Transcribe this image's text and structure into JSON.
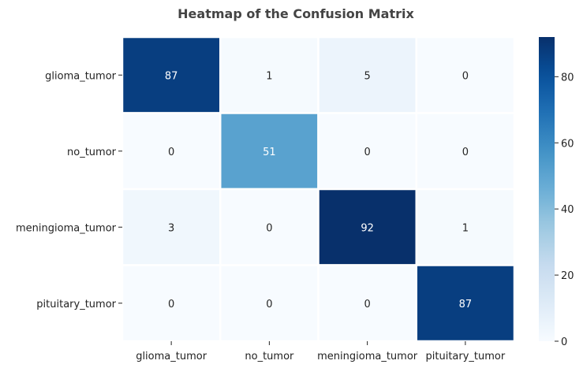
{
  "chart_data": {
    "type": "heatmap",
    "title": "Heatmap of the Confusion Matrix",
    "xlabel": "",
    "ylabel": "",
    "x_categories": [
      "glioma_tumor",
      "no_tumor",
      "meningioma_tumor",
      "pituitary_tumor"
    ],
    "y_categories": [
      "glioma_tumor",
      "no_tumor",
      "meningioma_tumor",
      "pituitary_tumor"
    ],
    "values": [
      [
        87,
        1,
        5,
        0
      ],
      [
        0,
        51,
        0,
        0
      ],
      [
        3,
        0,
        92,
        1
      ],
      [
        0,
        0,
        0,
        87
      ]
    ],
    "colormap": "Blues",
    "colorbar": {
      "min": 0,
      "max": 92,
      "ticks": [
        0,
        20,
        40,
        60,
        80
      ],
      "tick_labels": [
        "0",
        "20",
        "40",
        "60",
        "80"
      ]
    },
    "colors": {
      "cell_border": "#ffffff",
      "title": "#444444",
      "text_dark": "#262626",
      "text_light": "#ffffff"
    }
  }
}
